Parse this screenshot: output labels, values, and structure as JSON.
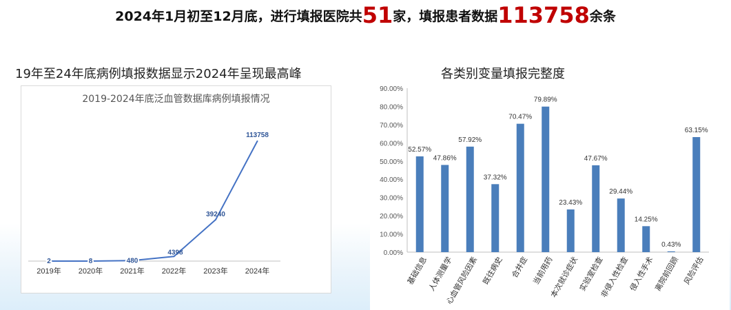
{
  "headline": {
    "part1": "2024年1月初至12月底，进行填报医院共",
    "hospitals": "51",
    "part2": "家，填报患者数据",
    "patients": "113758",
    "part3": "余条"
  },
  "left_section": {
    "title": "19年至24年底病例填报数据显示2024年呈现最高峰"
  },
  "right_section": {
    "title": "各类别变量填报完整度"
  },
  "colors": {
    "line": "#4472c4",
    "bar": "#4a7ebb",
    "accent": "#c00000"
  },
  "chart_data": [
    {
      "type": "line",
      "title": "2019-2024年底泛血管数据库病例填报情况",
      "x": [
        "2019年",
        "2020年",
        "2021年",
        "2022年",
        "2023年",
        "2024年"
      ],
      "values": [
        2,
        8,
        480,
        4398,
        39240,
        113758
      ],
      "data_labels": [
        "2",
        "8",
        "480",
        "4398",
        "39240",
        "113758"
      ],
      "ylim": [
        0,
        130000
      ],
      "grid": false
    },
    {
      "type": "bar",
      "categories": [
        "基础信息",
        "人体测量学",
        "心血管风险因素",
        "既往病史",
        "合并症",
        "当前用药",
        "本次就诊症状",
        "实验室检查",
        "非侵入性检查",
        "侵入性手术",
        "离院前回顾",
        "风险评估"
      ],
      "values": [
        52.57,
        47.86,
        57.92,
        37.32,
        70.47,
        79.89,
        23.43,
        47.67,
        29.44,
        14.25,
        0.43,
        63.15
      ],
      "data_labels": [
        "52.57%",
        "47.86%",
        "57.92%",
        "37.32%",
        "70.47%",
        "79.89%",
        "23.43%",
        "47.67%",
        "29.44%",
        "14.25%",
        "0.43%",
        "63.15%"
      ],
      "ylim": [
        0,
        90
      ],
      "yticks": [
        "0.00%",
        "10.00%",
        "20.00%",
        "30.00%",
        "40.00%",
        "50.00%",
        "60.00%",
        "70.00%",
        "80.00%",
        "90.00%"
      ],
      "grid": false
    }
  ]
}
